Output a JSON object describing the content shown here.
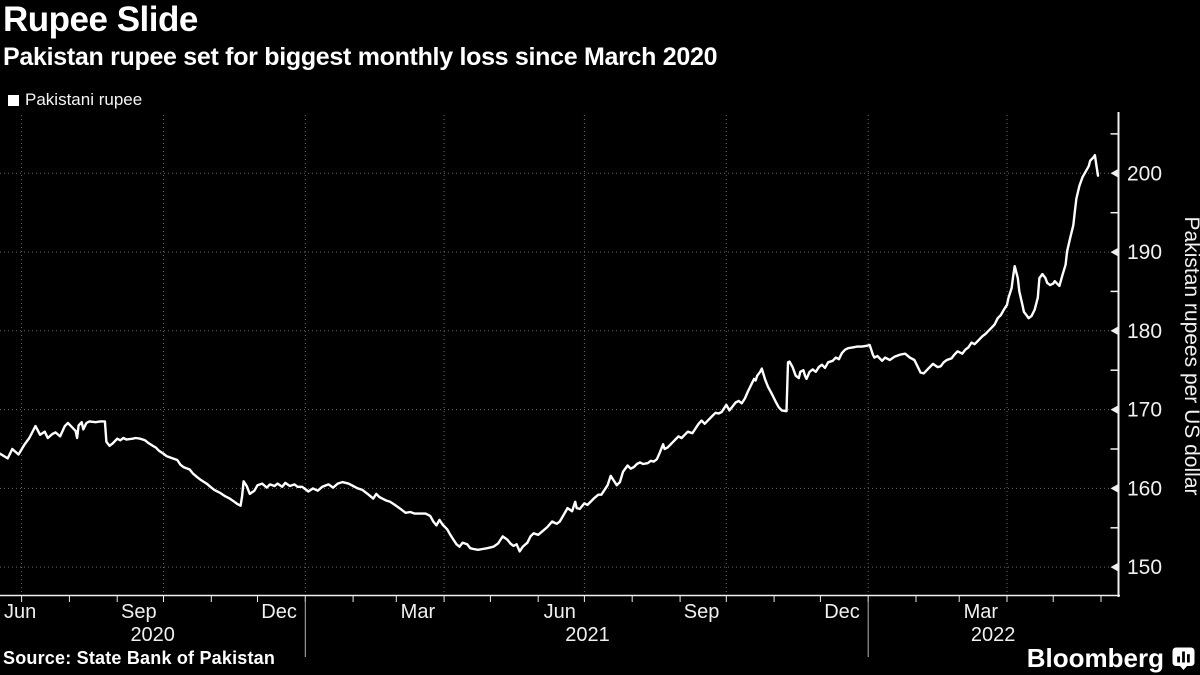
{
  "header": {
    "title": "Rupee Slide",
    "subtitle": "Pakistan rupee set for biggest monthly loss since March 2020"
  },
  "legend": {
    "label": "Pakistani rupee",
    "marker_color": "#ffffff"
  },
  "footer": {
    "source": "Source: State Bank of Pakistan",
    "brand": "Bloomberg"
  },
  "chart_data": {
    "type": "line",
    "title": "Rupee Slide",
    "subtitle": "Pakistan rupee set for biggest monthly loss since March 2020",
    "ylabel": "Pakistan rupees per US dollar",
    "xlabel": "",
    "ylim": [
      146.4,
      207.4
    ],
    "yticks_major": [
      150,
      160,
      170,
      180,
      190,
      200
    ],
    "yticks_minor": [
      155,
      165,
      175,
      185,
      195,
      205
    ],
    "grid": "dotted",
    "grid_color": "#676767",
    "axis_color": "#f0f0f0",
    "line_color": "#ffffff",
    "background": "#000000",
    "legend_position": "top-left",
    "series_name": "Pakistani rupee",
    "x_domain_days": 725,
    "x_month_tick_days": [
      14,
      45,
      76,
      106,
      137,
      167,
      198,
      229,
      257,
      288,
      318,
      349,
      379,
      410,
      441,
      471,
      502,
      532,
      563,
      594,
      622,
      653,
      683,
      714
    ],
    "x_gridline_days": [
      14,
      106,
      198,
      288,
      379,
      471,
      563,
      653
    ],
    "x_year_separator_days": [
      198,
      563
    ],
    "x_month_labels": [
      {
        "label": "Jun",
        "day": -2
      },
      {
        "label": "Sep",
        "day": 90
      },
      {
        "label": "Dec",
        "day": 181
      },
      {
        "label": "Mar",
        "day": 271
      },
      {
        "label": "Jun",
        "day": 363
      },
      {
        "label": "Sep",
        "day": 455
      },
      {
        "label": "Dec",
        "day": 546
      },
      {
        "label": "Mar",
        "day": 636
      }
    ],
    "x_year_labels": [
      {
        "label": "2020",
        "day": 99
      },
      {
        "label": "2021",
        "day": 381
      },
      {
        "label": "2022",
        "day": 644
      }
    ],
    "points_day_value": [
      [
        0,
        164.4
      ],
      [
        5,
        163.8
      ],
      [
        8,
        165.0
      ],
      [
        12,
        164.3
      ],
      [
        16,
        165.6
      ],
      [
        19,
        166.4
      ],
      [
        23,
        167.9
      ],
      [
        26,
        166.8
      ],
      [
        29,
        167.2
      ],
      [
        31,
        166.4
      ],
      [
        34,
        166.9
      ],
      [
        36,
        167.1
      ],
      [
        39,
        166.6
      ],
      [
        42,
        167.9
      ],
      [
        44,
        168.3
      ],
      [
        47,
        167.7
      ],
      [
        49,
        167.3
      ],
      [
        50,
        166.4
      ],
      [
        51,
        168.0
      ],
      [
        53,
        168.4
      ],
      [
        54,
        167.5
      ],
      [
        56,
        168.3
      ],
      [
        58,
        168.5
      ],
      [
        62,
        168.4
      ],
      [
        65,
        168.5
      ],
      [
        68,
        168.5
      ],
      [
        69,
        165.9
      ],
      [
        71,
        165.4
      ],
      [
        73,
        165.7
      ],
      [
        76,
        166.3
      ],
      [
        78,
        166.1
      ],
      [
        80,
        166.4
      ],
      [
        82,
        166.2
      ],
      [
        86,
        166.3
      ],
      [
        88,
        166.4
      ],
      [
        91,
        166.3
      ],
      [
        94,
        166.1
      ],
      [
        96,
        165.8
      ],
      [
        99,
        165.4
      ],
      [
        101,
        165.2
      ],
      [
        103,
        164.8
      ],
      [
        106,
        164.4
      ],
      [
        108,
        164.1
      ],
      [
        112,
        163.8
      ],
      [
        115,
        163.6
      ],
      [
        117,
        163.0
      ],
      [
        119,
        162.7
      ],
      [
        123,
        162.4
      ],
      [
        125,
        161.9
      ],
      [
        128,
        161.4
      ],
      [
        130,
        161.1
      ],
      [
        134,
        160.6
      ],
      [
        137,
        160.1
      ],
      [
        139,
        159.8
      ],
      [
        143,
        159.4
      ],
      [
        146,
        159.0
      ],
      [
        149,
        158.7
      ],
      [
        152,
        158.3
      ],
      [
        154,
        158.0
      ],
      [
        156,
        157.8
      ],
      [
        157,
        159.0
      ],
      [
        158,
        160.9
      ],
      [
        160,
        160.3
      ],
      [
        162,
        159.3
      ],
      [
        165,
        159.7
      ],
      [
        167,
        160.4
      ],
      [
        170,
        160.6
      ],
      [
        173,
        160.1
      ],
      [
        175,
        160.5
      ],
      [
        178,
        160.3
      ],
      [
        180,
        160.6
      ],
      [
        183,
        160.2
      ],
      [
        185,
        160.7
      ],
      [
        188,
        160.3
      ],
      [
        191,
        160.5
      ],
      [
        193,
        160.2
      ],
      [
        196,
        160.2
      ],
      [
        200,
        159.6
      ],
      [
        203,
        160.0
      ],
      [
        206,
        159.7
      ],
      [
        209,
        160.2
      ],
      [
        213,
        160.5
      ],
      [
        216,
        160.1
      ],
      [
        219,
        160.6
      ],
      [
        222,
        160.8
      ],
      [
        226,
        160.6
      ],
      [
        229,
        160.3
      ],
      [
        232,
        160.0
      ],
      [
        235,
        159.8
      ],
      [
        239,
        159.2
      ],
      [
        242,
        158.7
      ],
      [
        244,
        159.3
      ],
      [
        246,
        158.9
      ],
      [
        250,
        158.5
      ],
      [
        253,
        158.3
      ],
      [
        256,
        157.9
      ],
      [
        259,
        157.5
      ],
      [
        263,
        156.9
      ],
      [
        266,
        157.0
      ],
      [
        269,
        156.8
      ],
      [
        272,
        156.8
      ],
      [
        276,
        156.8
      ],
      [
        279,
        156.5
      ],
      [
        281,
        155.8
      ],
      [
        283,
        155.3
      ],
      [
        285,
        156.0
      ],
      [
        287,
        155.4
      ],
      [
        290,
        154.8
      ],
      [
        292,
        154.1
      ],
      [
        294,
        153.5
      ],
      [
        296,
        152.9
      ],
      [
        298,
        152.6
      ],
      [
        300,
        153.1
      ],
      [
        303,
        152.9
      ],
      [
        305,
        152.4
      ],
      [
        307,
        152.3
      ],
      [
        310,
        152.2
      ],
      [
        313,
        152.3
      ],
      [
        316,
        152.4
      ],
      [
        320,
        152.6
      ],
      [
        323,
        153.0
      ],
      [
        326,
        153.9
      ],
      [
        329,
        153.5
      ],
      [
        331,
        153.0
      ],
      [
        333,
        152.7
      ],
      [
        335,
        152.9
      ],
      [
        337,
        152.0
      ],
      [
        339,
        152.6
      ],
      [
        342,
        153.1
      ],
      [
        344,
        153.9
      ],
      [
        346,
        154.3
      ],
      [
        349,
        154.1
      ],
      [
        352,
        154.6
      ],
      [
        355,
        155.1
      ],
      [
        358,
        155.8
      ],
      [
        361,
        155.5
      ],
      [
        363,
        155.8
      ],
      [
        366,
        156.8
      ],
      [
        368,
        157.5
      ],
      [
        371,
        157.1
      ],
      [
        373,
        158.3
      ],
      [
        374,
        157.5
      ],
      [
        376,
        157.4
      ],
      [
        379,
        158.1
      ],
      [
        381,
        157.9
      ],
      [
        385,
        158.7
      ],
      [
        388,
        159.2
      ],
      [
        390,
        159.2
      ],
      [
        394,
        160.4
      ],
      [
        396,
        161.6
      ],
      [
        398,
        161.0
      ],
      [
        400,
        160.4
      ],
      [
        402,
        160.8
      ],
      [
        404,
        162.1
      ],
      [
        407,
        162.9
      ],
      [
        409,
        162.5
      ],
      [
        411,
        162.7
      ],
      [
        413,
        163.1
      ],
      [
        415,
        163.3
      ],
      [
        417,
        163.1
      ],
      [
        420,
        163.2
      ],
      [
        422,
        163.5
      ],
      [
        424,
        163.4
      ],
      [
        426,
        163.7
      ],
      [
        428,
        164.6
      ],
      [
        430,
        165.6
      ],
      [
        431,
        165.0
      ],
      [
        433,
        165.2
      ],
      [
        436,
        165.8
      ],
      [
        438,
        166.2
      ],
      [
        440,
        166.6
      ],
      [
        442,
        166.4
      ],
      [
        444,
        166.8
      ],
      [
        446,
        167.2
      ],
      [
        449,
        167.0
      ],
      [
        451,
        167.6
      ],
      [
        453,
        168.2
      ],
      [
        455,
        168.6
      ],
      [
        457,
        168.2
      ],
      [
        459,
        168.6
      ],
      [
        462,
        169.2
      ],
      [
        464,
        169.6
      ],
      [
        466,
        169.5
      ],
      [
        468,
        169.7
      ],
      [
        470,
        170.3
      ],
      [
        471,
        170.6
      ],
      [
        473,
        169.9
      ],
      [
        475,
        170.4
      ],
      [
        477,
        170.9
      ],
      [
        479,
        171.1
      ],
      [
        481,
        170.8
      ],
      [
        483,
        171.4
      ],
      [
        485,
        172.3
      ],
      [
        487,
        173.1
      ],
      [
        489,
        173.9
      ],
      [
        490,
        173.7
      ],
      [
        491,
        174.3
      ],
      [
        493,
        174.8
      ],
      [
        494,
        175.2
      ],
      [
        496,
        173.9
      ],
      [
        498,
        172.9
      ],
      [
        500,
        172.2
      ],
      [
        501,
        171.8
      ],
      [
        503,
        171.0
      ],
      [
        505,
        170.3
      ],
      [
        507,
        169.9
      ],
      [
        510,
        169.8
      ],
      [
        511,
        176.0
      ],
      [
        512,
        176.1
      ],
      [
        514,
        175.4
      ],
      [
        516,
        174.3
      ],
      [
        518,
        174.0
      ],
      [
        519,
        174.8
      ],
      [
        521,
        175.0
      ],
      [
        522,
        174.3
      ],
      [
        523,
        173.9
      ],
      [
        525,
        174.8
      ],
      [
        527,
        175.1
      ],
      [
        529,
        174.8
      ],
      [
        531,
        175.4
      ],
      [
        533,
        175.7
      ],
      [
        535,
        175.3
      ],
      [
        537,
        176.0
      ],
      [
        540,
        176.2
      ],
      [
        542,
        176.6
      ],
      [
        544,
        176.4
      ],
      [
        546,
        177.2
      ],
      [
        548,
        177.6
      ],
      [
        550,
        177.8
      ],
      [
        553,
        177.9
      ],
      [
        556,
        178.0
      ],
      [
        559,
        178.0
      ],
      [
        562,
        178.1
      ],
      [
        564,
        178.2
      ],
      [
        566,
        177.0
      ],
      [
        567,
        176.6
      ],
      [
        569,
        176.8
      ],
      [
        572,
        176.2
      ],
      [
        574,
        176.6
      ],
      [
        577,
        176.3
      ],
      [
        580,
        176.7
      ],
      [
        584,
        177.0
      ],
      [
        587,
        177.1
      ],
      [
        590,
        176.6
      ],
      [
        593,
        176.3
      ],
      [
        597,
        174.7
      ],
      [
        599,
        174.6
      ],
      [
        602,
        175.2
      ],
      [
        605,
        175.8
      ],
      [
        608,
        175.4
      ],
      [
        610,
        175.5
      ],
      [
        612,
        176.0
      ],
      [
        614,
        176.3
      ],
      [
        617,
        176.5
      ],
      [
        619,
        177.0
      ],
      [
        621,
        177.4
      ],
      [
        624,
        177.1
      ],
      [
        626,
        177.6
      ],
      [
        628,
        177.9
      ],
      [
        630,
        178.5
      ],
      [
        632,
        178.3
      ],
      [
        634,
        178.7
      ],
      [
        637,
        179.3
      ],
      [
        639,
        179.6
      ],
      [
        641,
        180.0
      ],
      [
        643,
        180.4
      ],
      [
        645,
        180.8
      ],
      [
        647,
        181.6
      ],
      [
        649,
        182.0
      ],
      [
        651,
        182.7
      ],
      [
        653,
        183.3
      ],
      [
        654,
        184.2
      ],
      [
        656,
        185.4
      ],
      [
        657,
        186.9
      ],
      [
        658,
        188.2
      ],
      [
        660,
        186.7
      ],
      [
        661,
        185.0
      ],
      [
        663,
        183.3
      ],
      [
        664,
        182.4
      ],
      [
        666,
        181.9
      ],
      [
        667,
        181.6
      ],
      [
        669,
        181.9
      ],
      [
        671,
        182.7
      ],
      [
        673,
        184.2
      ],
      [
        674,
        186.7
      ],
      [
        676,
        187.2
      ],
      [
        678,
        186.7
      ],
      [
        679,
        186.1
      ],
      [
        681,
        185.8
      ],
      [
        683,
        186.0
      ],
      [
        684,
        186.3
      ],
      [
        686,
        185.9
      ],
      [
        687,
        185.7
      ],
      [
        689,
        187.1
      ],
      [
        691,
        188.4
      ],
      [
        692,
        190.1
      ],
      [
        694,
        191.8
      ],
      [
        696,
        193.4
      ],
      [
        697,
        195.1
      ],
      [
        698,
        196.8
      ],
      [
        700,
        198.4
      ],
      [
        702,
        199.5
      ],
      [
        704,
        200.2
      ],
      [
        706,
        200.9
      ],
      [
        707,
        201.6
      ],
      [
        709,
        202.0
      ],
      [
        710,
        202.3
      ],
      [
        711,
        201.0
      ],
      [
        712,
        199.7
      ]
    ]
  }
}
